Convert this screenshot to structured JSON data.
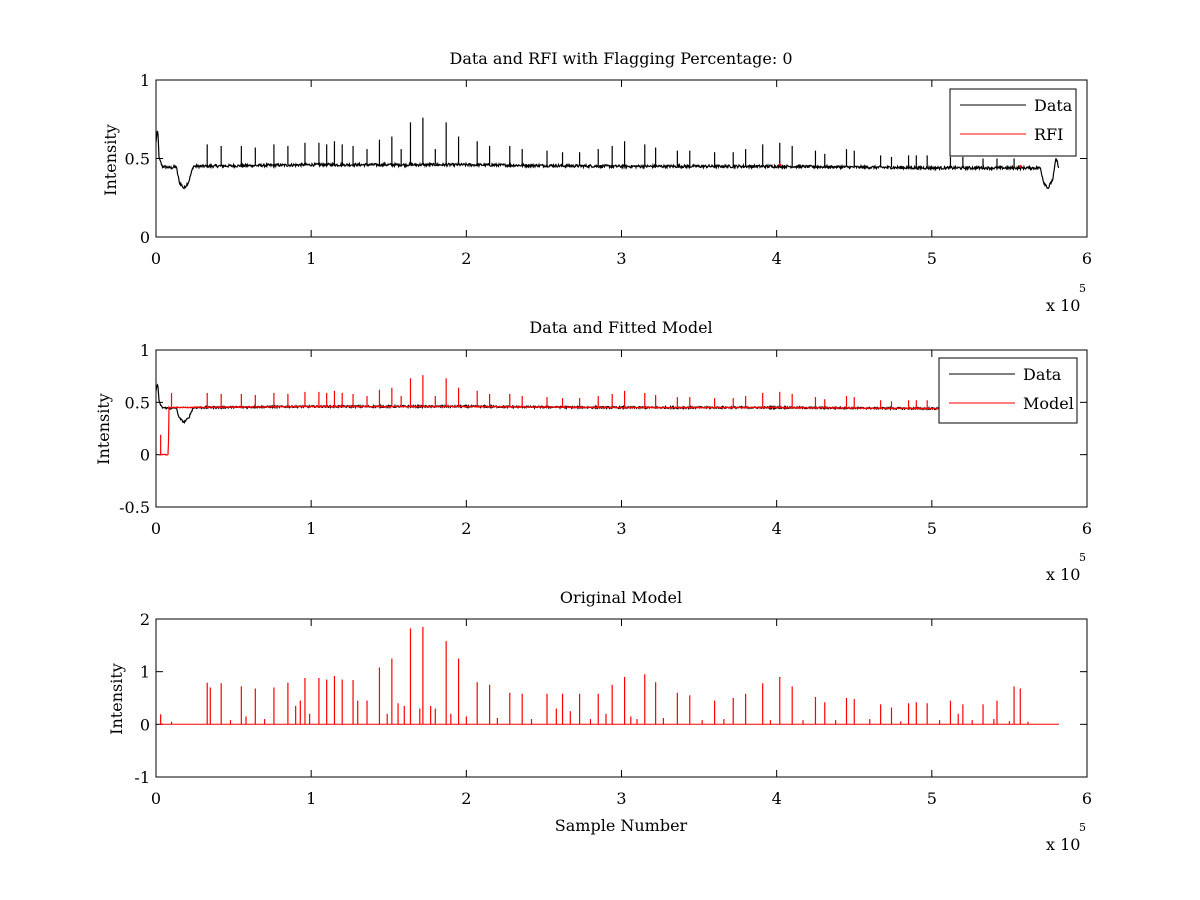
{
  "chart_data": [
    {
      "type": "line",
      "title": "Data and RFI with Flagging Percentage: 0",
      "xlabel": "",
      "ylabel": "Intensity",
      "xlim": [
        0,
        6
      ],
      "ylim": [
        0,
        1
      ],
      "x_multiplier": "x 10",
      "x_exponent": "5",
      "xticks": [
        "0",
        "1",
        "2",
        "3",
        "4",
        "5",
        "6"
      ],
      "yticks": [
        "0",
        "0.5",
        "1"
      ],
      "legend": {
        "position": "top-right",
        "entries": [
          "Data",
          "RFI"
        ]
      },
      "series": [
        {
          "name": "Data",
          "color": "#000000",
          "baseline": [
            [
              0,
              0.6
            ],
            [
              0.005,
              0.66
            ],
            [
              0.012,
              0.67
            ],
            [
              0.02,
              0.5
            ],
            [
              0.04,
              0.45
            ],
            [
              0.1,
              0.44
            ],
            [
              0.13,
              0.45
            ],
            [
              0.15,
              0.35
            ],
            [
              0.18,
              0.31
            ],
            [
              0.21,
              0.35
            ],
            [
              0.24,
              0.45
            ],
            [
              1.0,
              0.46
            ],
            [
              2.0,
              0.46
            ],
            [
              3.0,
              0.45
            ],
            [
              4.0,
              0.45
            ],
            [
              5.0,
              0.44
            ],
            [
              5.7,
              0.44
            ],
            [
              5.72,
              0.35
            ],
            [
              5.75,
              0.31
            ],
            [
              5.78,
              0.37
            ],
            [
              5.8,
              0.5
            ],
            [
              5.82,
              0.44
            ]
          ],
          "noise": 0.009,
          "spikes": [
            [
              0.33,
              0.59
            ],
            [
              0.42,
              0.58
            ],
            [
              0.55,
              0.58
            ],
            [
              0.64,
              0.57
            ],
            [
              0.76,
              0.59
            ],
            [
              0.85,
              0.58
            ],
            [
              0.96,
              0.6
            ],
            [
              1.05,
              0.6
            ],
            [
              1.1,
              0.59
            ],
            [
              1.15,
              0.61
            ],
            [
              1.2,
              0.59
            ],
            [
              1.27,
              0.58
            ],
            [
              1.36,
              0.56
            ],
            [
              1.44,
              0.62
            ],
            [
              1.52,
              0.64
            ],
            [
              1.58,
              0.56
            ],
            [
              1.64,
              0.73
            ],
            [
              1.72,
              0.76
            ],
            [
              1.8,
              0.56
            ],
            [
              1.87,
              0.73
            ],
            [
              1.95,
              0.64
            ],
            [
              2.07,
              0.61
            ],
            [
              2.15,
              0.58
            ],
            [
              2.28,
              0.58
            ],
            [
              2.36,
              0.56
            ],
            [
              2.52,
              0.55
            ],
            [
              2.62,
              0.54
            ],
            [
              2.73,
              0.54
            ],
            [
              2.85,
              0.56
            ],
            [
              2.94,
              0.58
            ],
            [
              3.02,
              0.61
            ],
            [
              3.15,
              0.59
            ],
            [
              3.22,
              0.57
            ],
            [
              3.36,
              0.55
            ],
            [
              3.44,
              0.55
            ],
            [
              3.6,
              0.54
            ],
            [
              3.72,
              0.54
            ],
            [
              3.8,
              0.56
            ],
            [
              3.91,
              0.59
            ],
            [
              4.02,
              0.6
            ],
            [
              4.1,
              0.58
            ],
            [
              4.25,
              0.55
            ],
            [
              4.31,
              0.53
            ],
            [
              4.45,
              0.56
            ],
            [
              4.5,
              0.55
            ],
            [
              4.67,
              0.52
            ],
            [
              4.74,
              0.51
            ],
            [
              4.85,
              0.52
            ],
            [
              4.9,
              0.52
            ],
            [
              4.97,
              0.52
            ],
            [
              5.12,
              0.51
            ],
            [
              5.2,
              0.51
            ],
            [
              5.33,
              0.5
            ],
            [
              5.42,
              0.5
            ],
            [
              5.53,
              0.5
            ]
          ]
        },
        {
          "name": "RFI",
          "color": "#ff0000",
          "points": [
            [
              4.02,
              0.46
            ],
            [
              5.57,
              0.45
            ]
          ]
        }
      ]
    },
    {
      "type": "line",
      "title": "Data and Fitted Model",
      "xlabel": "",
      "ylabel": "Intensity",
      "xlim": [
        0,
        6
      ],
      "ylim": [
        -0.5,
        1
      ],
      "x_multiplier": "x 10",
      "x_exponent": "5",
      "xticks": [
        "0",
        "1",
        "2",
        "3",
        "4",
        "5",
        "6"
      ],
      "yticks": [
        "-0.5",
        "0",
        "0.5",
        "1"
      ],
      "legend": {
        "position": "top-right",
        "entries": [
          "Data",
          "Model"
        ]
      },
      "series": [
        {
          "name": "Data",
          "color": "#000000",
          "baseline": [
            [
              0,
              0.6
            ],
            [
              0.005,
              0.66
            ],
            [
              0.012,
              0.67
            ],
            [
              0.02,
              0.5
            ],
            [
              0.04,
              0.45
            ],
            [
              0.1,
              0.44
            ],
            [
              0.13,
              0.45
            ],
            [
              0.15,
              0.35
            ],
            [
              0.18,
              0.31
            ],
            [
              0.21,
              0.35
            ],
            [
              0.24,
              0.45
            ],
            [
              1.0,
              0.46
            ],
            [
              2.0,
              0.46
            ],
            [
              3.0,
              0.45
            ],
            [
              4.0,
              0.45
            ],
            [
              5.06,
              0.44
            ]
          ],
          "noise": 0.009
        },
        {
          "name": "Model",
          "color": "#ff0000",
          "baseline": [
            [
              0.02,
              0.0
            ],
            [
              0.08,
              0.0
            ],
            [
              0.082,
              0.45
            ],
            [
              1.0,
              0.46
            ],
            [
              2.0,
              0.46
            ],
            [
              3.0,
              0.45
            ],
            [
              4.0,
              0.45
            ],
            [
              5.06,
              0.44
            ]
          ],
          "noise": 0.004,
          "spikes": [
            [
              0.03,
              0.19
            ],
            [
              0.1,
              0.59
            ],
            [
              0.33,
              0.59
            ],
            [
              0.42,
              0.58
            ],
            [
              0.55,
              0.58
            ],
            [
              0.64,
              0.57
            ],
            [
              0.76,
              0.59
            ],
            [
              0.85,
              0.58
            ],
            [
              0.96,
              0.6
            ],
            [
              1.05,
              0.6
            ],
            [
              1.1,
              0.59
            ],
            [
              1.15,
              0.61
            ],
            [
              1.2,
              0.59
            ],
            [
              1.27,
              0.58
            ],
            [
              1.36,
              0.56
            ],
            [
              1.44,
              0.62
            ],
            [
              1.52,
              0.64
            ],
            [
              1.58,
              0.56
            ],
            [
              1.64,
              0.73
            ],
            [
              1.72,
              0.76
            ],
            [
              1.8,
              0.56
            ],
            [
              1.87,
              0.73
            ],
            [
              1.95,
              0.64
            ],
            [
              2.07,
              0.61
            ],
            [
              2.15,
              0.58
            ],
            [
              2.28,
              0.58
            ],
            [
              2.36,
              0.56
            ],
            [
              2.52,
              0.55
            ],
            [
              2.62,
              0.54
            ],
            [
              2.73,
              0.54
            ],
            [
              2.85,
              0.56
            ],
            [
              2.94,
              0.58
            ],
            [
              3.02,
              0.61
            ],
            [
              3.15,
              0.59
            ],
            [
              3.22,
              0.57
            ],
            [
              3.36,
              0.55
            ],
            [
              3.44,
              0.55
            ],
            [
              3.6,
              0.54
            ],
            [
              3.72,
              0.54
            ],
            [
              3.8,
              0.56
            ],
            [
              3.91,
              0.59
            ],
            [
              4.02,
              0.6
            ],
            [
              4.1,
              0.58
            ],
            [
              4.25,
              0.55
            ],
            [
              4.31,
              0.53
            ],
            [
              4.45,
              0.56
            ],
            [
              4.5,
              0.55
            ],
            [
              4.67,
              0.52
            ],
            [
              4.74,
              0.51
            ],
            [
              4.85,
              0.52
            ],
            [
              4.9,
              0.52
            ],
            [
              4.97,
              0.52
            ]
          ]
        }
      ]
    },
    {
      "type": "line",
      "title": "Original Model",
      "xlabel": "Sample Number",
      "ylabel": "Intensity",
      "xlim": [
        0,
        6
      ],
      "ylim": [
        -1,
        2
      ],
      "x_multiplier": "x 10",
      "x_exponent": "5",
      "xticks": [
        "0",
        "1",
        "2",
        "3",
        "4",
        "5",
        "6"
      ],
      "yticks": [
        "-1",
        "0",
        "1",
        "2"
      ],
      "series": [
        {
          "color": "#ff0000",
          "baseline": [
            [
              0.02,
              0.0
            ],
            [
              5.82,
              0.0
            ]
          ],
          "noise": 0,
          "spikes": [
            [
              0.03,
              0.19
            ],
            [
              0.1,
              0.05
            ],
            [
              0.33,
              0.79
            ],
            [
              0.35,
              0.7
            ],
            [
              0.42,
              0.78
            ],
            [
              0.48,
              0.08
            ],
            [
              0.55,
              0.72
            ],
            [
              0.58,
              0.15
            ],
            [
              0.64,
              0.68
            ],
            [
              0.7,
              0.1
            ],
            [
              0.76,
              0.7
            ],
            [
              0.85,
              0.79
            ],
            [
              0.9,
              0.35
            ],
            [
              0.93,
              0.45
            ],
            [
              0.96,
              0.88
            ],
            [
              0.99,
              0.2
            ],
            [
              1.05,
              0.88
            ],
            [
              1.1,
              0.85
            ],
            [
              1.15,
              0.92
            ],
            [
              1.2,
              0.85
            ],
            [
              1.27,
              0.84
            ],
            [
              1.3,
              0.45
            ],
            [
              1.36,
              0.45
            ],
            [
              1.44,
              1.08
            ],
            [
              1.49,
              0.2
            ],
            [
              1.52,
              1.25
            ],
            [
              1.56,
              0.4
            ],
            [
              1.6,
              0.35
            ],
            [
              1.64,
              1.82
            ],
            [
              1.7,
              0.3
            ],
            [
              1.72,
              1.85
            ],
            [
              1.77,
              0.35
            ],
            [
              1.8,
              0.3
            ],
            [
              1.87,
              1.58
            ],
            [
              1.9,
              0.2
            ],
            [
              1.95,
              1.25
            ],
            [
              2.0,
              0.15
            ],
            [
              2.07,
              0.8
            ],
            [
              2.15,
              0.75
            ],
            [
              2.2,
              0.12
            ],
            [
              2.28,
              0.6
            ],
            [
              2.36,
              0.58
            ],
            [
              2.42,
              0.1
            ],
            [
              2.52,
              0.58
            ],
            [
              2.58,
              0.3
            ],
            [
              2.62,
              0.58
            ],
            [
              2.67,
              0.25
            ],
            [
              2.73,
              0.58
            ],
            [
              2.8,
              0.1
            ],
            [
              2.85,
              0.58
            ],
            [
              2.9,
              0.2
            ],
            [
              2.94,
              0.75
            ],
            [
              3.02,
              0.9
            ],
            [
              3.06,
              0.15
            ],
            [
              3.1,
              0.1
            ],
            [
              3.15,
              0.95
            ],
            [
              3.22,
              0.8
            ],
            [
              3.27,
              0.12
            ],
            [
              3.36,
              0.6
            ],
            [
              3.44,
              0.55
            ],
            [
              3.52,
              0.08
            ],
            [
              3.6,
              0.45
            ],
            [
              3.66,
              0.1
            ],
            [
              3.72,
              0.5
            ],
            [
              3.8,
              0.58
            ],
            [
              3.91,
              0.78
            ],
            [
              3.96,
              0.08
            ],
            [
              4.02,
              0.9
            ],
            [
              4.1,
              0.72
            ],
            [
              4.17,
              0.08
            ],
            [
              4.25,
              0.52
            ],
            [
              4.31,
              0.42
            ],
            [
              4.38,
              0.08
            ],
            [
              4.45,
              0.5
            ],
            [
              4.5,
              0.48
            ],
            [
              4.6,
              0.1
            ],
            [
              4.67,
              0.38
            ],
            [
              4.74,
              0.32
            ],
            [
              4.8,
              0.06
            ],
            [
              4.85,
              0.4
            ],
            [
              4.9,
              0.42
            ],
            [
              4.97,
              0.4
            ],
            [
              5.05,
              0.08
            ],
            [
              5.12,
              0.45
            ],
            [
              5.17,
              0.2
            ],
            [
              5.2,
              0.38
            ],
            [
              5.26,
              0.08
            ],
            [
              5.33,
              0.38
            ],
            [
              5.4,
              0.1
            ],
            [
              5.42,
              0.45
            ],
            [
              5.5,
              0.06
            ],
            [
              5.53,
              0.72
            ],
            [
              5.57,
              0.68
            ],
            [
              5.62,
              0.05
            ]
          ]
        }
      ]
    }
  ]
}
